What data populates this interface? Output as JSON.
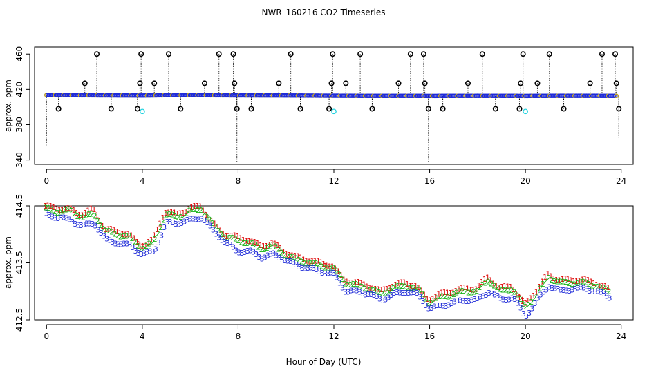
{
  "title": "NWR_160216  CO2 Timeseries",
  "colors": {
    "blue": "#1f2bd8",
    "green": "#18b418",
    "red": "#e01010",
    "cyan": "#22d3e0",
    "yellow": "#d9b400",
    "black": "#000000"
  },
  "chart_data": [
    {
      "type": "scatter",
      "name": "raw",
      "title": "NWR_160216  CO2 Timeseries",
      "xlabel": "",
      "ylabel": "approx. ppm",
      "xlim": [
        -0.5,
        24.5
      ],
      "ylim": [
        335,
        468
      ],
      "xticks": [
        0,
        4,
        8,
        12,
        16,
        20,
        24
      ],
      "yticks": [
        340,
        380,
        420,
        460
      ],
      "baseline": [
        [
          0.0,
          414.4
        ],
        [
          0.5,
          414.3
        ],
        [
          1.0,
          414.2
        ],
        [
          2.0,
          414.0
        ],
        [
          3.0,
          413.8
        ],
        [
          4.0,
          413.6
        ],
        [
          5.0,
          414.2
        ],
        [
          6.0,
          414.3
        ],
        [
          7.0,
          414.1
        ],
        [
          8.0,
          413.9
        ],
        [
          9.0,
          413.8
        ],
        [
          10.0,
          413.7
        ],
        [
          11.0,
          413.4
        ],
        [
          12.0,
          413.2
        ],
        [
          13.0,
          413.0
        ],
        [
          14.0,
          412.9
        ],
        [
          15.0,
          413.0
        ],
        [
          16.0,
          412.8
        ],
        [
          17.0,
          412.9
        ],
        [
          18.0,
          413.0
        ],
        [
          19.0,
          412.9
        ],
        [
          20.0,
          412.8
        ],
        [
          21.0,
          413.0
        ],
        [
          22.0,
          413.0
        ],
        [
          23.0,
          413.0
        ],
        [
          23.8,
          412.9
        ]
      ],
      "outliers_high": [
        [
          1.6,
          427
        ],
        [
          2.1,
          460
        ],
        [
          3.9,
          427
        ],
        [
          3.95,
          460
        ],
        [
          4.5,
          427
        ],
        [
          5.1,
          460
        ],
        [
          6.6,
          427
        ],
        [
          7.2,
          460
        ],
        [
          7.8,
          460
        ],
        [
          7.85,
          427
        ],
        [
          9.7,
          427
        ],
        [
          10.2,
          460
        ],
        [
          11.9,
          427
        ],
        [
          11.95,
          460
        ],
        [
          12.5,
          427
        ],
        [
          13.1,
          460
        ],
        [
          14.7,
          427
        ],
        [
          15.2,
          460
        ],
        [
          15.75,
          460
        ],
        [
          15.8,
          427
        ],
        [
          17.6,
          427
        ],
        [
          18.2,
          460
        ],
        [
          19.8,
          427
        ],
        [
          19.9,
          460
        ],
        [
          20.5,
          427
        ],
        [
          21.0,
          460
        ],
        [
          22.7,
          427
        ],
        [
          23.2,
          460
        ],
        [
          23.75,
          460
        ],
        [
          23.8,
          427
        ]
      ],
      "outliers_low": [
        [
          0.5,
          398
        ],
        [
          2.7,
          398
        ],
        [
          3.8,
          398
        ],
        [
          5.6,
          398
        ],
        [
          7.95,
          398
        ],
        [
          8.55,
          398
        ],
        [
          10.6,
          398
        ],
        [
          11.8,
          398
        ],
        [
          13.6,
          398
        ],
        [
          15.95,
          398
        ],
        [
          16.55,
          398
        ],
        [
          18.75,
          398
        ],
        [
          19.75,
          398
        ],
        [
          21.6,
          398
        ],
        [
          23.9,
          398
        ]
      ],
      "cyan_points": [
        [
          4.0,
          395
        ],
        [
          12.0,
          395
        ],
        [
          20.0,
          395
        ]
      ],
      "spikes_down": [
        [
          0.0,
          355
        ],
        [
          7.95,
          338
        ],
        [
          15.95,
          338
        ],
        [
          23.9,
          365
        ]
      ]
    },
    {
      "type": "line",
      "name": "smoothed",
      "title": "",
      "xlabel": "Hour of Day (UTC)",
      "ylabel": "approx. ppm",
      "xlim": [
        -0.5,
        24.5
      ],
      "ylim": [
        412.5,
        414.5
      ],
      "xticks": [
        0,
        4,
        8,
        12,
        16,
        20,
        24
      ],
      "yticks": [
        412.5,
        413.5,
        414.5
      ],
      "markers": {
        "series1": "1",
        "series2": "2",
        "series3": "3"
      },
      "series": [
        {
          "name": "1",
          "color": "#e01010",
          "x": [
            0.0,
            0.5,
            1.0,
            1.5,
            2.0,
            2.5,
            3.0,
            3.5,
            4.0,
            4.5,
            5.0,
            5.5,
            6.0,
            6.5,
            7.0,
            7.5,
            8.0,
            8.5,
            9.0,
            9.5,
            10.0,
            10.5,
            11.0,
            11.5,
            12.0,
            12.5,
            13.0,
            13.5,
            14.0,
            14.5,
            15.0,
            15.5,
            16.0,
            16.5,
            17.0,
            17.5,
            18.0,
            18.5,
            19.0,
            19.5,
            20.0,
            20.5,
            21.0,
            21.5,
            22.0,
            22.5,
            23.0,
            23.5
          ],
          "values": [
            414.5,
            414.45,
            414.45,
            414.35,
            414.45,
            414.1,
            414.05,
            414.0,
            413.8,
            413.9,
            414.4,
            414.35,
            414.45,
            414.5,
            414.2,
            414.0,
            413.95,
            413.9,
            413.8,
            413.85,
            413.7,
            413.6,
            413.55,
            413.5,
            413.45,
            413.2,
            413.15,
            413.1,
            413.0,
            413.1,
            413.15,
            413.1,
            412.85,
            412.95,
            413.0,
            413.05,
            413.05,
            413.25,
            413.05,
            413.1,
            412.75,
            413.0,
            413.3,
            413.2,
            413.2,
            413.2,
            413.15,
            413.05
          ]
        },
        {
          "name": "2",
          "color": "#18b418",
          "x": [
            0.0,
            0.5,
            1.0,
            1.5,
            2.0,
            2.5,
            3.0,
            3.5,
            4.0,
            4.5,
            5.0,
            5.5,
            6.0,
            6.5,
            7.0,
            7.5,
            8.0,
            8.5,
            9.0,
            9.5,
            10.0,
            10.5,
            11.0,
            11.5,
            12.0,
            12.5,
            13.0,
            13.5,
            14.0,
            14.5,
            15.0,
            15.5,
            16.0,
            16.5,
            17.0,
            17.5,
            18.0,
            18.5,
            19.0,
            19.5,
            20.0,
            20.5,
            21.0,
            21.5,
            22.0,
            22.5,
            23.0,
            23.5
          ],
          "values": [
            414.45,
            414.4,
            414.42,
            414.3,
            414.35,
            414.05,
            414.0,
            413.95,
            413.75,
            413.85,
            414.35,
            414.3,
            414.4,
            414.45,
            414.15,
            413.95,
            413.9,
            413.85,
            413.75,
            413.8,
            413.65,
            413.55,
            413.5,
            413.45,
            413.4,
            413.15,
            413.1,
            413.05,
            412.95,
            413.05,
            413.1,
            413.05,
            412.8,
            412.9,
            412.95,
            413.0,
            413.0,
            413.2,
            413.0,
            413.05,
            412.7,
            412.95,
            413.25,
            413.15,
            413.15,
            413.15,
            413.1,
            413.0
          ]
        },
        {
          "name": "3",
          "color": "#1f2bd8",
          "x": [
            0.0,
            0.5,
            1.0,
            1.5,
            2.0,
            2.5,
            3.0,
            3.5,
            4.0,
            4.5,
            5.0,
            5.5,
            6.0,
            6.5,
            7.0,
            7.5,
            8.0,
            8.5,
            9.0,
            9.5,
            10.0,
            10.5,
            11.0,
            11.5,
            12.0,
            12.5,
            13.0,
            13.5,
            14.0,
            14.5,
            15.0,
            15.5,
            16.0,
            16.5,
            17.0,
            17.5,
            18.0,
            18.5,
            19.0,
            19.5,
            20.0,
            20.5,
            21.0,
            21.5,
            22.0,
            22.5,
            23.0,
            23.5
          ],
          "values": [
            414.35,
            414.3,
            414.25,
            414.15,
            414.2,
            413.9,
            413.85,
            413.8,
            413.65,
            413.7,
            414.2,
            414.2,
            414.25,
            414.3,
            414.05,
            413.85,
            413.7,
            413.7,
            413.6,
            413.65,
            413.55,
            413.45,
            413.4,
            413.35,
            413.3,
            413.0,
            413.0,
            412.95,
            412.85,
            412.95,
            413.0,
            412.95,
            412.7,
            412.75,
            412.8,
            412.85,
            412.85,
            413.0,
            412.85,
            412.9,
            412.55,
            412.85,
            413.1,
            413.0,
            413.05,
            413.05,
            413.0,
            412.9
          ]
        }
      ]
    }
  ]
}
